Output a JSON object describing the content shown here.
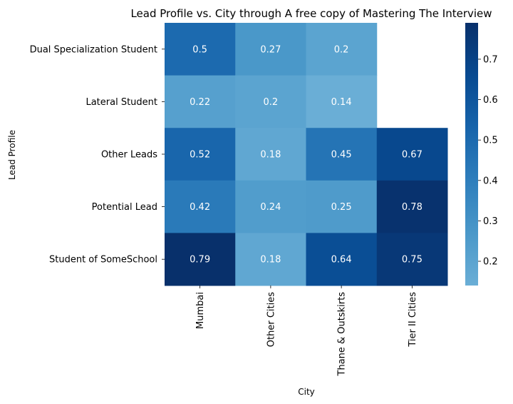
{
  "chart_data": {
    "type": "heatmap",
    "title": "Lead Profile vs. City through A free copy of Mastering The Interview",
    "xlabel": "City",
    "ylabel": "Lead Profile",
    "x_categories": [
      "Mumbai",
      "Other Cities",
      "Thane & Outskirts",
      "Tier II Cities"
    ],
    "y_categories": [
      "Dual Specialization Student",
      "Lateral Student",
      "Other Leads",
      "Potential Lead",
      "Student of SomeSchool"
    ],
    "values": [
      [
        0.5,
        0.27,
        0.2,
        null
      ],
      [
        0.22,
        0.2,
        0.14,
        null
      ],
      [
        0.52,
        0.18,
        0.45,
        0.67
      ],
      [
        0.42,
        0.24,
        0.25,
        0.78
      ],
      [
        0.79,
        0.18,
        0.64,
        0.75
      ]
    ],
    "colorbar": {
      "range": [
        0.14,
        0.79
      ],
      "ticks": [
        0.2,
        0.3,
        0.4,
        0.5,
        0.6,
        0.7
      ],
      "tick_labels": [
        "0.2",
        "0.3",
        "0.4",
        "0.5",
        "0.6",
        "0.7"
      ]
    },
    "colormap": [
      "#6aaed6",
      "#4a98c9",
      "#2e7ebc",
      "#1764ab",
      "#084a91",
      "#08306b"
    ],
    "grid": false,
    "legend": "colorbar-right"
  }
}
